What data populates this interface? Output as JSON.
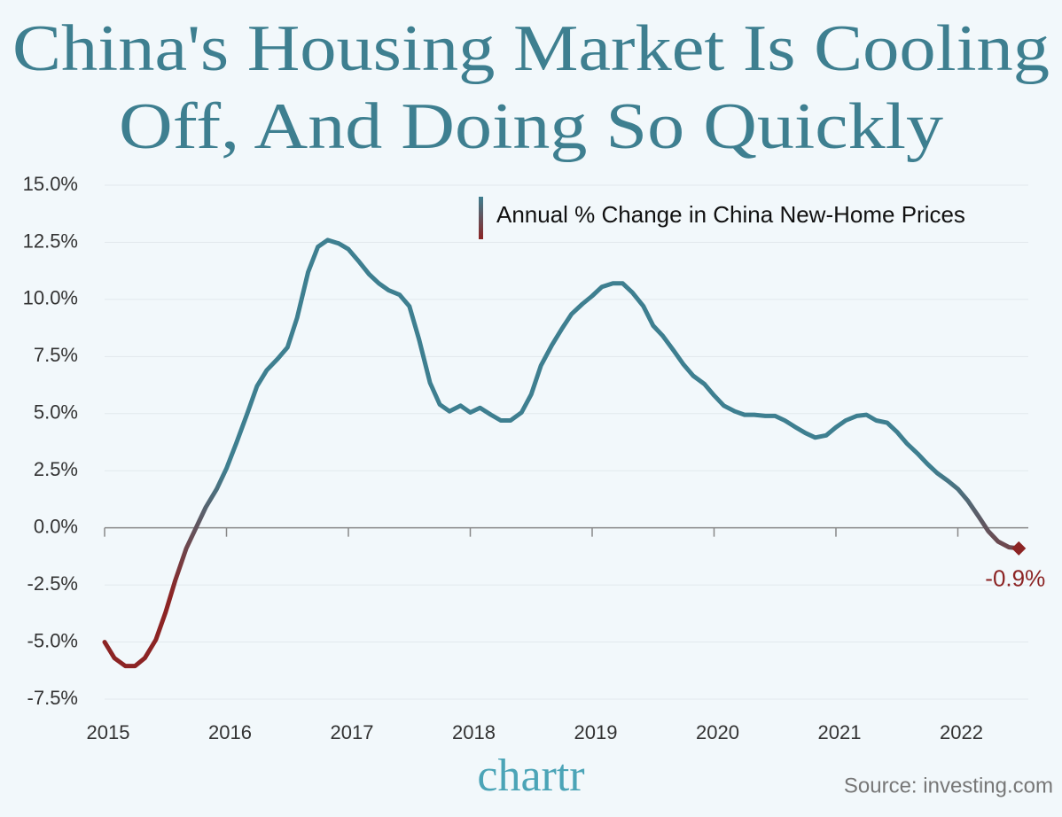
{
  "chart_data": {
    "type": "line",
    "title": [
      "China's Housing Market Is Cooling",
      "Off, And Doing So Quickly"
    ],
    "x": [
      2015,
      2015.08,
      2015.17,
      2015.25,
      2015.33,
      2015.42,
      2015.5,
      2015.58,
      2015.67,
      2015.75,
      2015.83,
      2015.92,
      2016,
      2016.08,
      2016.17,
      2016.25,
      2016.33,
      2016.42,
      2016.5,
      2016.58,
      2016.67,
      2016.75,
      2016.83,
      2016.92,
      2017,
      2017.08,
      2017.17,
      2017.25,
      2017.33,
      2017.42,
      2017.5,
      2017.58,
      2017.67,
      2017.75,
      2017.83,
      2017.92,
      2018,
      2018.08,
      2018.17,
      2018.25,
      2018.33,
      2018.42,
      2018.5,
      2018.58,
      2018.67,
      2018.75,
      2018.83,
      2018.92,
      2019,
      2019.08,
      2019.17,
      2019.25,
      2019.33,
      2019.42,
      2019.5,
      2019.58,
      2019.67,
      2019.75,
      2019.83,
      2019.92,
      2020,
      2020.08,
      2020.17,
      2020.25,
      2020.33,
      2020.42,
      2020.5,
      2020.58,
      2020.67,
      2020.75,
      2020.83,
      2020.92,
      2021,
      2021.08,
      2021.17,
      2021.25,
      2021.33,
      2021.42,
      2021.5,
      2021.58,
      2021.67,
      2021.75,
      2021.83,
      2021.92,
      2022,
      2022.08,
      2022.17,
      2022.25,
      2022.33,
      2022.42,
      2022.5
    ],
    "series": [
      {
        "name": "Annual % Change in China New-Home Prices",
        "colors": [
          "#3e7f90",
          "#8c2424"
        ],
        "values": [
          -5.0,
          -5.7,
          -6.05,
          -6.05,
          -5.7,
          -4.9,
          -3.7,
          -2.3,
          -0.9,
          0.0,
          0.9,
          1.7,
          2.6,
          3.7,
          5.0,
          6.2,
          6.9,
          7.4,
          7.9,
          9.2,
          11.2,
          12.3,
          12.6,
          12.45,
          12.2,
          11.7,
          11.1,
          10.7,
          10.4,
          10.2,
          9.7,
          8.25,
          6.35,
          5.4,
          5.1,
          5.35,
          5.05,
          5.25,
          4.95,
          4.7,
          4.7,
          5.05,
          5.85,
          7.1,
          8.0,
          8.7,
          9.35,
          9.8,
          10.15,
          10.55,
          10.7,
          10.7,
          10.3,
          9.7,
          8.85,
          8.4,
          7.75,
          7.15,
          6.65,
          6.3,
          5.8,
          5.35,
          5.1,
          4.95,
          4.95,
          4.9,
          4.9,
          4.7,
          4.4,
          4.15,
          3.95,
          4.05,
          4.4,
          4.7,
          4.9,
          4.95,
          4.7,
          4.6,
          4.2,
          3.7,
          3.25,
          2.8,
          2.4,
          2.05,
          1.7,
          1.2,
          0.5,
          -0.15,
          -0.6,
          -0.85,
          -0.9
        ],
        "end_label": "-0.9%"
      }
    ],
    "xlim": [
      2015,
      2022.6
    ],
    "xticks": [
      2015,
      2016,
      2017,
      2018,
      2019,
      2020,
      2021,
      2022
    ],
    "ylim": [
      -7.5,
      15
    ],
    "yticks": [
      {
        "value": -7.5,
        "label": "-7.5%"
      },
      {
        "value": -5,
        "label": "-5.0%"
      },
      {
        "value": -2.5,
        "label": "-2.5%"
      },
      {
        "value": 0,
        "label": "0.0%"
      },
      {
        "value": 2.5,
        "label": "2.5%"
      },
      {
        "value": 5,
        "label": "5.0%"
      },
      {
        "value": 7.5,
        "label": "7.5%"
      },
      {
        "value": 10,
        "label": "10.0%"
      },
      {
        "value": 12.5,
        "label": "12.5%"
      },
      {
        "value": 15,
        "label": "15.0%"
      }
    ],
    "grid": true,
    "brand": "chartr",
    "source": "Source: investing.com"
  }
}
